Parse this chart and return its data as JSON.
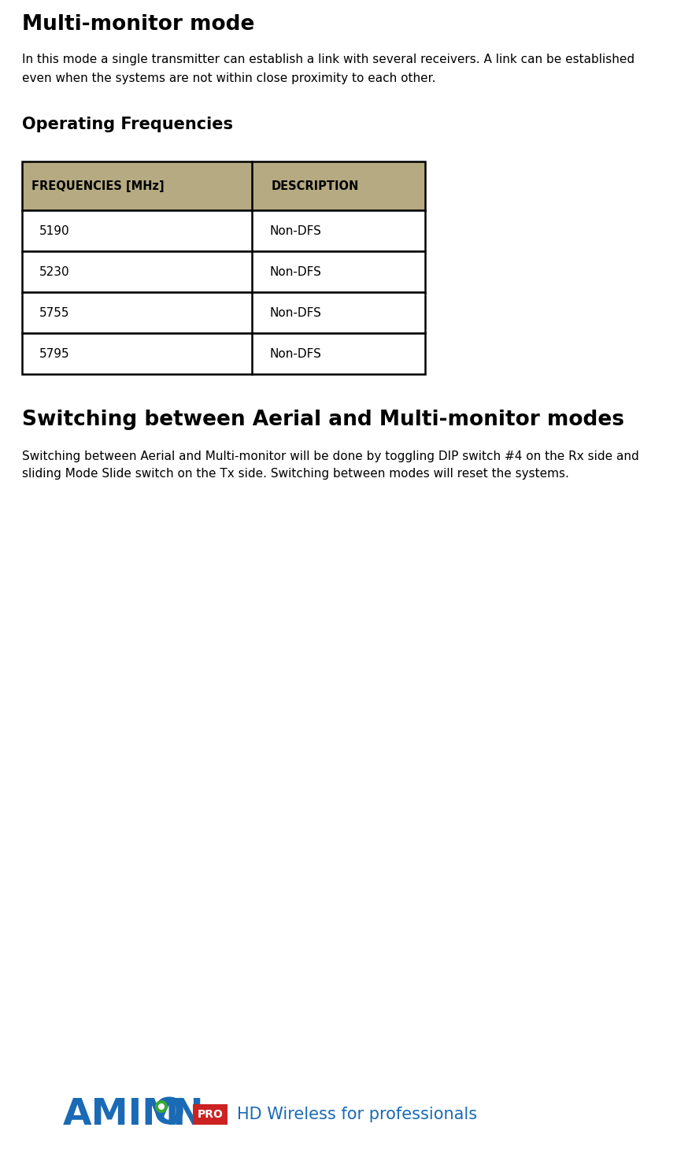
{
  "title": "Multi-monitor mode",
  "body_line1": "In this mode a single transmitter can establish a link with several receivers. A link can be established",
  "body_line2": "even when the systems are not within close proximity to each other.",
  "section1_title": "Operating Frequencies",
  "table_header": [
    "FREQUENCIES [MHz]",
    "DESCRIPTION"
  ],
  "table_rows": [
    [
      "5190",
      "Non-DFS"
    ],
    [
      "5230",
      "Non-DFS"
    ],
    [
      "5755",
      "Non-DFS"
    ],
    [
      "5795",
      "Non-DFS"
    ]
  ],
  "table_header_bg": "#b5aa82",
  "section2_title": "Switching between Aerial and Multi-monitor modes",
  "s2_line1": "Switching between Aerial and Multi-monitor will be done by toggling DIP switch #4 on the Rx side and",
  "s2_line2": "sliding Mode Slide switch on the Tx side. Switching between modes will reset the systems.",
  "amimon_tagline": "HD Wireless for professionals",
  "amimon_blue": "#1a6ab5",
  "amimon_green": "#3aaa35",
  "amimon_red": "#cc2222",
  "bg_color": "#ffffff"
}
